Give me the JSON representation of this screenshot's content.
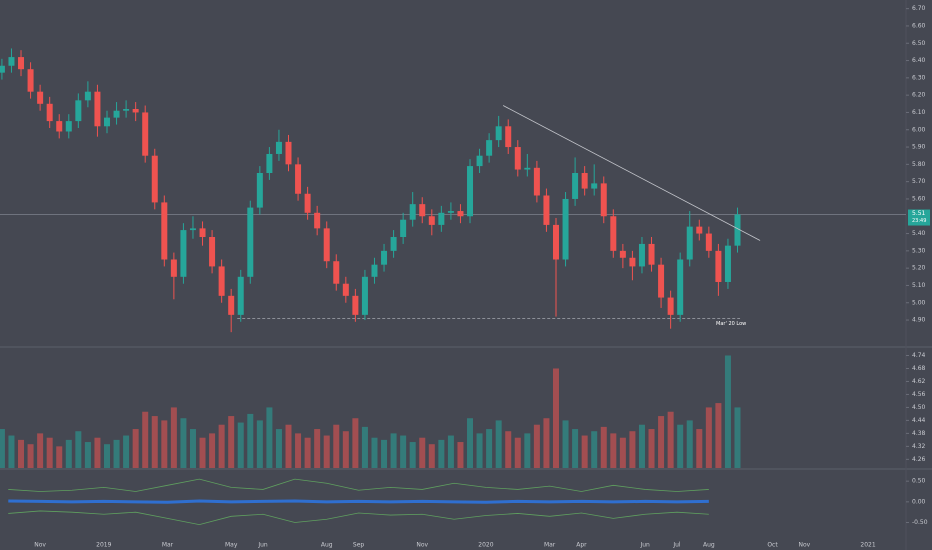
{
  "chart_data": [
    {
      "type": "candlestick",
      "x": [
        -3.2,
        -2.9,
        -2.6,
        -2.3,
        -2.0,
        -1.7,
        -1.4,
        -1.1,
        -0.8,
        -0.5,
        -0.2,
        0.1,
        0.4,
        0.7,
        1.0,
        1.3,
        1.6,
        1.9,
        2.2,
        2.5,
        2.8,
        3.1,
        3.4,
        3.7,
        4.0,
        4.3,
        4.6,
        4.9,
        5.2,
        5.5,
        5.8,
        6.1,
        6.4,
        6.7,
        7.0,
        7.3,
        7.6,
        7.9,
        8.2,
        8.5,
        8.8,
        9.1,
        9.4,
        9.7,
        10.0,
        10.3,
        10.6,
        10.9,
        11.2,
        11.5,
        11.8,
        12.1,
        12.4,
        12.7,
        13.0,
        13.3,
        13.6,
        13.9,
        14.2,
        14.5,
        14.8,
        15.1,
        15.4,
        15.7,
        16.0,
        16.3,
        16.6,
        16.9,
        17.2,
        17.5,
        17.8,
        18.1,
        18.4,
        18.7,
        19.0,
        19.3,
        19.6,
        19.9
      ],
      "open": [
        6.33,
        6.37,
        6.42,
        6.35,
        6.22,
        6.15,
        6.05,
        5.99,
        6.05,
        6.17,
        6.22,
        6.02,
        6.07,
        6.11,
        6.12,
        6.1,
        5.85,
        5.58,
        5.25,
        5.15,
        5.42,
        5.43,
        5.38,
        5.21,
        5.04,
        4.93,
        5.15,
        5.55,
        5.75,
        5.86,
        5.93,
        5.8,
        5.63,
        5.52,
        5.43,
        5.24,
        5.11,
        5.04,
        4.93,
        5.15,
        5.22,
        5.3,
        5.38,
        5.48,
        5.57,
        5.5,
        5.45,
        5.52,
        5.53,
        5.5,
        5.79,
        5.85,
        5.94,
        6.02,
        5.9,
        5.77,
        5.78,
        5.62,
        5.45,
        5.25,
        5.6,
        5.75,
        5.66,
        5.69,
        5.5,
        5.3,
        5.26,
        5.21,
        5.34,
        5.22,
        5.03,
        4.93,
        5.25,
        5.44,
        5.4,
        5.3,
        5.12,
        5.33
      ],
      "high": [
        6.41,
        6.47,
        6.46,
        6.39,
        6.26,
        6.19,
        6.09,
        6.09,
        6.21,
        6.28,
        6.26,
        6.11,
        6.16,
        6.17,
        6.16,
        6.14,
        5.89,
        5.62,
        5.29,
        5.46,
        5.5,
        5.47,
        5.42,
        5.25,
        5.08,
        5.19,
        5.59,
        5.79,
        5.9,
        6.0,
        5.97,
        5.84,
        5.67,
        5.56,
        5.47,
        5.28,
        5.15,
        5.08,
        5.19,
        5.26,
        5.34,
        5.42,
        5.52,
        5.64,
        5.61,
        5.54,
        5.56,
        5.58,
        5.57,
        5.83,
        5.89,
        5.98,
        6.08,
        6.06,
        5.94,
        5.86,
        5.82,
        5.66,
        5.49,
        5.64,
        5.84,
        5.79,
        5.8,
        5.73,
        5.54,
        5.34,
        5.3,
        5.38,
        5.38,
        5.26,
        5.07,
        5.29,
        5.53,
        5.48,
        5.44,
        5.34,
        5.37,
        5.55
      ],
      "low": [
        6.29,
        6.33,
        6.31,
        6.18,
        6.11,
        6.01,
        5.95,
        5.95,
        6.01,
        6.13,
        5.96,
        5.98,
        6.03,
        6.07,
        6.05,
        5.81,
        5.54,
        5.21,
        5.02,
        5.11,
        5.37,
        5.33,
        5.17,
        5.0,
        4.83,
        4.89,
        5.11,
        5.51,
        5.71,
        5.82,
        5.76,
        5.59,
        5.48,
        5.39,
        5.2,
        5.07,
        5.0,
        4.89,
        4.9,
        5.11,
        5.18,
        5.26,
        5.34,
        5.44,
        5.46,
        5.39,
        5.41,
        5.48,
        5.46,
        5.46,
        5.75,
        5.81,
        5.9,
        5.86,
        5.73,
        5.73,
        5.58,
        5.41,
        4.92,
        5.21,
        5.56,
        5.62,
        5.62,
        5.46,
        5.26,
        5.2,
        5.13,
        5.17,
        5.18,
        4.97,
        4.85,
        4.89,
        5.21,
        5.36,
        5.26,
        5.04,
        5.08,
        5.29
      ],
      "close": [
        6.37,
        6.42,
        6.35,
        6.22,
        6.15,
        6.05,
        5.99,
        6.05,
        6.17,
        6.22,
        6.02,
        6.07,
        6.11,
        6.12,
        6.1,
        5.85,
        5.58,
        5.25,
        5.15,
        5.42,
        5.43,
        5.38,
        5.21,
        5.04,
        4.93,
        5.15,
        5.55,
        5.75,
        5.86,
        5.93,
        5.8,
        5.63,
        5.52,
        5.43,
        5.24,
        5.11,
        5.04,
        4.93,
        5.15,
        5.22,
        5.3,
        5.38,
        5.48,
        5.57,
        5.5,
        5.45,
        5.52,
        5.53,
        5.5,
        5.79,
        5.85,
        5.94,
        6.02,
        5.9,
        5.77,
        5.78,
        5.62,
        5.45,
        5.25,
        5.6,
        5.75,
        5.66,
        5.69,
        5.5,
        5.3,
        5.26,
        5.21,
        5.34,
        5.22,
        5.03,
        4.93,
        5.25,
        5.44,
        5.4,
        5.3,
        5.12,
        5.33,
        5.51
      ],
      "up_color": "#26a69a",
      "down_color": "#ef5350",
      "xlim": [
        -3.26,
        25.16
      ],
      "ylim": [
        4.75,
        6.75
      ],
      "yticks": [
        {
          "value": 6.7,
          "label": "6.70"
        },
        {
          "value": 6.6,
          "label": "6.60"
        },
        {
          "value": 6.5,
          "label": "6.50"
        },
        {
          "value": 6.4,
          "label": "6.40"
        },
        {
          "value": 6.3,
          "label": "6.30"
        },
        {
          "value": 6.2,
          "label": "6.20"
        },
        {
          "value": 6.1,
          "label": "6.10"
        },
        {
          "value": 6.0,
          "label": "6.00"
        },
        {
          "value": 5.9,
          "label": "5.90"
        },
        {
          "value": 5.8,
          "label": "5.80"
        },
        {
          "value": 5.7,
          "label": "5.70"
        },
        {
          "value": 5.6,
          "label": "5.60"
        },
        {
          "value": 5.4,
          "label": "5.40"
        },
        {
          "value": 5.3,
          "label": "5.30"
        },
        {
          "value": 5.2,
          "label": "5.20"
        },
        {
          "value": 5.1,
          "label": "5.10"
        },
        {
          "value": 5.0,
          "label": "5.00"
        },
        {
          "value": 4.9,
          "label": "4.90"
        }
      ],
      "xticks": [
        {
          "value": -2,
          "label": "Nov"
        },
        {
          "value": 0,
          "label": "2019"
        },
        {
          "value": 2,
          "label": "Mar"
        },
        {
          "value": 4,
          "label": "May"
        },
        {
          "value": 5,
          "label": "Jun"
        },
        {
          "value": 7,
          "label": "Aug"
        },
        {
          "value": 8,
          "label": "Sep"
        },
        {
          "value": 10,
          "label": "Nov"
        },
        {
          "value": 12,
          "label": "2020"
        },
        {
          "value": 14,
          "label": "Mar"
        },
        {
          "value": 15,
          "label": "Apr"
        },
        {
          "value": 17,
          "label": "Jun"
        },
        {
          "value": 18,
          "label": "Jul"
        },
        {
          "value": 19,
          "label": "Aug"
        },
        {
          "value": 21,
          "label": "Oct"
        },
        {
          "value": 22,
          "label": "Nov"
        },
        {
          "value": 24,
          "label": "2021"
        }
      ],
      "trendline": {
        "x": [
          12.54,
          20.61
        ],
        "y": [
          6.14,
          5.36
        ]
      },
      "support": {
        "x": [
          4.19,
          19.98
        ],
        "y": 4.91,
        "label": "Mar' 20 Low"
      },
      "last_price": {
        "value": 5.51,
        "countdown": "23:49"
      }
    },
    {
      "type": "volume",
      "values": [
        4.4,
        4.37,
        4.35,
        4.33,
        4.38,
        4.36,
        4.32,
        4.35,
        4.39,
        4.34,
        4.36,
        4.33,
        4.35,
        4.37,
        4.4,
        4.48,
        4.46,
        4.44,
        4.5,
        4.45,
        4.4,
        4.36,
        4.38,
        4.42,
        4.46,
        4.43,
        4.47,
        4.44,
        4.5,
        4.4,
        4.42,
        4.38,
        4.36,
        4.4,
        4.37,
        4.42,
        4.39,
        4.45,
        4.41,
        4.36,
        4.35,
        4.38,
        4.37,
        4.34,
        4.36,
        4.33,
        4.35,
        4.37,
        4.34,
        4.45,
        4.38,
        4.4,
        4.44,
        4.39,
        4.36,
        4.38,
        4.42,
        4.45,
        4.68,
        4.44,
        4.4,
        4.37,
        4.39,
        4.41,
        4.38,
        4.36,
        4.39,
        4.42,
        4.4,
        4.46,
        4.48,
        4.42,
        4.44,
        4.4,
        4.5,
        4.52,
        4.74,
        4.5
      ],
      "ylim": [
        4.22,
        4.77
      ],
      "yticks": [
        4.74,
        4.68,
        4.62,
        4.56,
        {
          "value": 4.5,
          "label": "4.50"
        },
        4.44,
        4.38,
        4.32,
        4.26
      ]
    },
    {
      "type": "line",
      "x": [
        -3,
        -2,
        -1,
        0,
        1,
        2,
        3,
        4,
        5,
        6,
        7,
        8,
        9,
        10,
        11,
        12,
        13,
        14,
        15,
        16,
        17,
        18,
        19
      ],
      "series": [
        {
          "color": "#5fa05f",
          "values": [
            0.3,
            0.25,
            0.28,
            0.35,
            0.25,
            0.4,
            0.55,
            0.35,
            0.3,
            0.55,
            0.45,
            0.28,
            0.35,
            0.3,
            0.45,
            0.35,
            0.3,
            0.38,
            0.25,
            0.4,
            0.3,
            0.25,
            0.3
          ]
        },
        {
          "color": "#5fa05f",
          "values": [
            -0.28,
            -0.22,
            -0.25,
            -0.3,
            -0.25,
            -0.4,
            -0.55,
            -0.35,
            -0.3,
            -0.5,
            -0.42,
            -0.27,
            -0.32,
            -0.3,
            -0.42,
            -0.33,
            -0.28,
            -0.35,
            -0.27,
            -0.4,
            -0.3,
            -0.25,
            -0.3
          ]
        },
        {
          "color": "#2f6fd0",
          "values": [
            0.02,
            0.01,
            0.0,
            0.01,
            0.0,
            -0.01,
            0.02,
            0.0,
            0.01,
            0.02,
            0.0,
            0.01,
            0.0,
            0.01,
            0.0,
            -0.01,
            0.01,
            0.0,
            0.01,
            0.0,
            0.01,
            0.0,
            0.01
          ]
        }
      ],
      "ylim": [
        -0.85,
        0.77
      ],
      "yticks": [
        {
          "value": 0.5,
          "label": "0.50"
        },
        {
          "value": 0,
          "label": "0.00"
        },
        {
          "value": -0.5,
          "label": "-0.50"
        }
      ]
    }
  ]
}
